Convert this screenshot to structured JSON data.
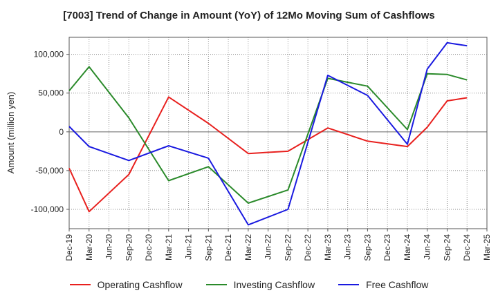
{
  "chart_data": {
    "type": "line",
    "title": "[7003]  Trend of Change in Amount (YoY) of 12Mo Moving Sum of Cashflows",
    "xlabel": "",
    "ylabel": "Amount (million yen)",
    "ylim": [
      -125000,
      122000
    ],
    "yticks": [
      100000,
      50000,
      0,
      -50000,
      -100000
    ],
    "ytick_labels": [
      "100,000",
      "50,000",
      "0",
      "-50,000",
      "-100,000"
    ],
    "categories": [
      "Dec-19",
      "Mar-20",
      "Jun-20",
      "Sep-20",
      "Dec-20",
      "Mar-21",
      "Jun-21",
      "Sep-21",
      "Dec-21",
      "Mar-22",
      "Jun-22",
      "Sep-22",
      "Dec-22",
      "Mar-23",
      "Jun-23",
      "Sep-23",
      "Dec-23",
      "Mar-24",
      "Jun-24",
      "Sep-24",
      "Dec-24",
      "Mar-25"
    ],
    "grid": true,
    "legend_position": "bottom",
    "series": [
      {
        "name": "Operating Cashflow",
        "color": "#e8201e",
        "x": [
          "Dec-19",
          "Mar-20",
          "Sep-20",
          "Mar-21",
          "Sep-21",
          "Mar-22",
          "Sep-22",
          "Mar-23",
          "Sep-23",
          "Mar-24",
          "Jun-24",
          "Sep-24",
          "Dec-24"
        ],
        "values": [
          -47000,
          -103000,
          -55000,
          45000,
          11000,
          -28000,
          -25000,
          5000,
          -12000,
          -19000,
          6000,
          40000,
          44000
        ]
      },
      {
        "name": "Investing Cashflow",
        "color": "#2a8a2a",
        "x": [
          "Dec-19",
          "Mar-20",
          "Sep-20",
          "Mar-21",
          "Sep-21",
          "Mar-22",
          "Sep-22",
          "Mar-23",
          "Sep-23",
          "Mar-24",
          "Jun-24",
          "Sep-24",
          "Dec-24"
        ],
        "values": [
          53000,
          84000,
          18000,
          -63000,
          -45000,
          -92000,
          -75000,
          69000,
          59000,
          3000,
          75000,
          74000,
          67000
        ]
      },
      {
        "name": "Free Cashflow",
        "color": "#1a1ae0",
        "x": [
          "Dec-19",
          "Mar-20",
          "Sep-20",
          "Mar-21",
          "Sep-21",
          "Mar-22",
          "Sep-22",
          "Mar-23",
          "Sep-23",
          "Mar-24",
          "Jun-24",
          "Sep-24",
          "Dec-24"
        ],
        "values": [
          7000,
          -19000,
          -37000,
          -18000,
          -34000,
          -120000,
          -100000,
          73000,
          47000,
          -16000,
          81000,
          115000,
          111000
        ]
      }
    ]
  }
}
